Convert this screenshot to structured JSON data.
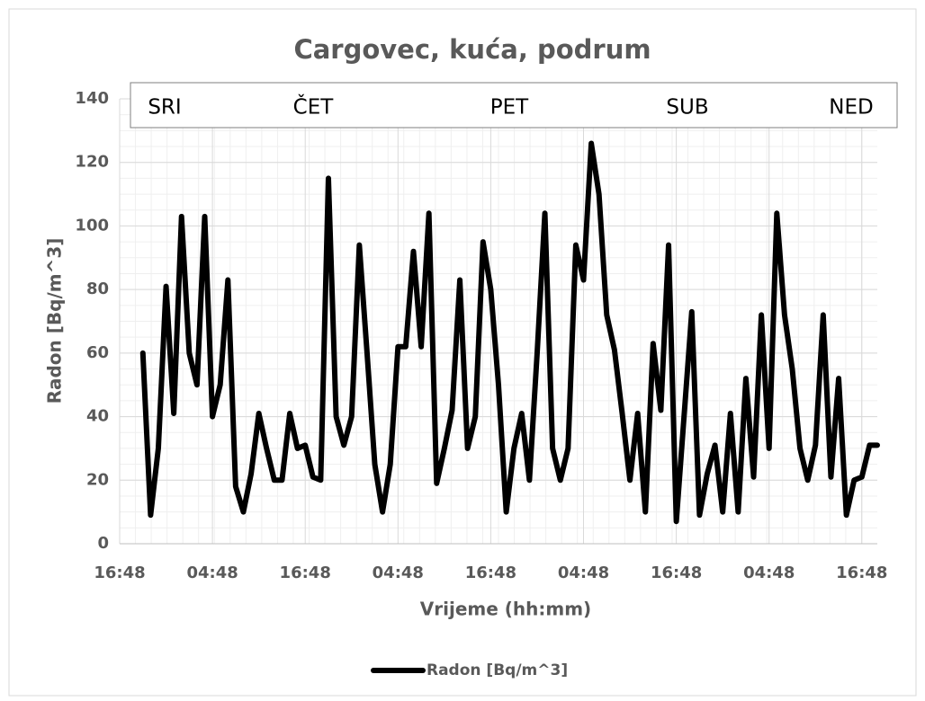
{
  "chart_data": {
    "type": "line",
    "title": "Cargovec, kuća, podrum",
    "x_label": "Vrijeme (hh:mm)",
    "y_label": "Radon [Bq/m^3]",
    "annotations": [
      "SRI",
      "ČET",
      "PET",
      "SUB",
      "NED"
    ],
    "xlim": [
      0,
      98
    ],
    "ylim": [
      0,
      140
    ],
    "xticks": [
      {
        "value": 0,
        "label": "16:48"
      },
      {
        "value": 12,
        "label": "04:48"
      },
      {
        "value": 24,
        "label": "16:48"
      },
      {
        "value": 36,
        "label": "04:48"
      },
      {
        "value": 48,
        "label": "16:48"
      },
      {
        "value": 60,
        "label": "04:48"
      },
      {
        "value": 72,
        "label": "16:48"
      },
      {
        "value": 84,
        "label": "04:48"
      },
      {
        "value": 96,
        "label": "16:48"
      }
    ],
    "yticks": [
      0,
      20,
      40,
      60,
      80,
      100,
      120,
      140
    ],
    "grid": true,
    "legend": "bottom",
    "x": [
      3,
      4,
      5,
      6,
      7,
      8,
      9,
      10,
      11,
      12,
      13,
      14,
      15,
      16,
      17,
      18,
      19,
      20,
      21,
      22,
      23,
      24,
      25,
      26,
      27,
      28,
      29,
      30,
      31,
      32,
      33,
      34,
      35,
      36,
      37,
      38,
      39,
      40,
      41,
      42,
      43,
      44,
      45,
      46,
      47,
      48,
      49,
      50,
      51,
      52,
      53,
      54,
      55,
      56,
      57,
      58,
      59,
      60,
      61,
      62,
      63,
      64,
      65,
      66,
      67,
      68,
      69,
      70,
      71,
      72,
      73,
      74,
      75,
      76,
      77,
      78,
      79,
      80,
      81,
      82,
      83,
      84,
      85,
      86,
      87,
      88,
      89,
      90,
      91,
      92,
      93,
      94,
      95,
      96,
      97,
      98
    ],
    "series": [
      {
        "name": "Radon [Bq/m^3]",
        "color": "#000000",
        "values": [
          60,
          9,
          30,
          81,
          41,
          103,
          60,
          50,
          103,
          40,
          50,
          83,
          18,
          10,
          22,
          41,
          30,
          20,
          20,
          41,
          30,
          31,
          21,
          20,
          115,
          40,
          31,
          40,
          94,
          60,
          25,
          10,
          25,
          62,
          62,
          92,
          62,
          104,
          19,
          30,
          42,
          83,
          30,
          40,
          95,
          80,
          50,
          10,
          30,
          41,
          20,
          60,
          104,
          30,
          20,
          30,
          94,
          83,
          126,
          110,
          72,
          61,
          41,
          20,
          41,
          10,
          63,
          42,
          94,
          7,
          40,
          73,
          9,
          22,
          31,
          10,
          41,
          10,
          52,
          21,
          72,
          30,
          104,
          72,
          55,
          30,
          20,
          31,
          72,
          21,
          52,
          9,
          20,
          21,
          31,
          31
        ]
      }
    ]
  }
}
